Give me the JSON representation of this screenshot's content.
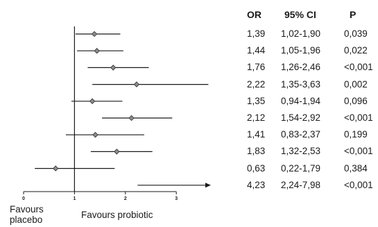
{
  "chart_data": {
    "type": "forest",
    "columns": {
      "or": "OR",
      "ci": "95% CI",
      "p": "P"
    },
    "rows": [
      {
        "or": 1.39,
        "lo": 1.02,
        "hi": 1.9,
        "or_text": "1,39",
        "ci_text": "1,02-1,90",
        "p_text": "0,039",
        "truncated": false
      },
      {
        "or": 1.44,
        "lo": 1.05,
        "hi": 1.96,
        "or_text": "1,44",
        "ci_text": "1,05-1,96",
        "p_text": "0,022",
        "truncated": false
      },
      {
        "or": 1.76,
        "lo": 1.26,
        "hi": 2.46,
        "or_text": "1,76",
        "ci_text": "1,26-2,46",
        "p_text": "<0,001",
        "truncated": false
      },
      {
        "or": 2.22,
        "lo": 1.35,
        "hi": 3.63,
        "or_text": "2,22",
        "ci_text": "1,35-3,63",
        "p_text": "0,002",
        "truncated": false
      },
      {
        "or": 1.35,
        "lo": 0.94,
        "hi": 1.94,
        "or_text": "1,35",
        "ci_text": "0,94-1,94",
        "p_text": "0,096",
        "truncated": false
      },
      {
        "or": 2.12,
        "lo": 1.54,
        "hi": 2.92,
        "or_text": "2,12",
        "ci_text": "1,54-2,92",
        "p_text": "<0,001",
        "truncated": false
      },
      {
        "or": 1.41,
        "lo": 0.83,
        "hi": 2.37,
        "or_text": "1,41",
        "ci_text": "0,83-2,37",
        "p_text": "0,199",
        "truncated": false
      },
      {
        "or": 1.83,
        "lo": 1.32,
        "hi": 2.53,
        "or_text": "1,83",
        "ci_text": "1,32-2,53",
        "p_text": "<0,001",
        "truncated": false
      },
      {
        "or": 0.63,
        "lo": 0.22,
        "hi": 1.79,
        "or_text": "0,63",
        "ci_text": "0,22-1,79",
        "p_text": "0,384",
        "truncated": false
      },
      {
        "or": 4.23,
        "lo": 2.24,
        "hi": 7.98,
        "or_text": "4,23",
        "ci_text": "2,24-7,98",
        "p_text": "<0,001",
        "truncated": true
      }
    ],
    "x_ticks": [
      "0",
      "1",
      "2",
      "3"
    ],
    "xlim": [
      0,
      3
    ],
    "reference_line": 1,
    "labels": {
      "left": "Favours\nplacebo",
      "right": "Favours probiotic"
    },
    "colors": {
      "line": "#1a1a1a",
      "marker": "#8c8c8c"
    }
  }
}
